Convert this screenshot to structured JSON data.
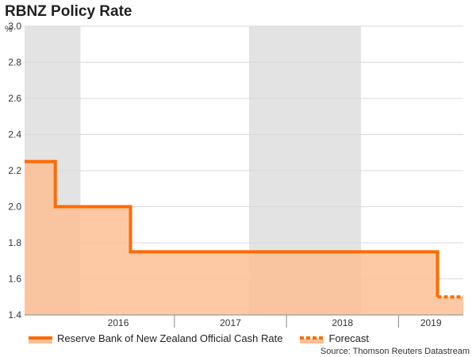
{
  "title": "RBNZ Policy Rate",
  "unit": "%",
  "source": "Source: Thomson Reuters Datastream",
  "colors": {
    "line": "#ff6b00",
    "fill": "#fdbf94",
    "shade": "#e3e3e3",
    "grid": "#d9d9d9"
  },
  "chart_data": {
    "type": "area",
    "title": "RBNZ Policy Rate",
    "ylabel": "%",
    "xlim": [
      "2015-09-01",
      "2019-07-31"
    ],
    "ylim": [
      1.4,
      3.0
    ],
    "yticks": [
      "1.4",
      "1.6",
      "1.8",
      "2.0",
      "2.2",
      "2.4",
      "2.6",
      "2.8",
      "3.0"
    ],
    "grid": true,
    "xticks": [
      {
        "label": "2016",
        "date": "2016-01-01",
        "end": "2017-01-01"
      },
      {
        "label": "2017",
        "date": "2017-01-01",
        "end": "2018-01-01"
      },
      {
        "label": "2018",
        "date": "2018-01-01",
        "end": "2019-01-01"
      },
      {
        "label": "2019",
        "date": "2019-01-01",
        "end": "2019-07-31"
      }
    ],
    "shaded_periods": [
      [
        "2015-09-01",
        "2016-03-01"
      ],
      [
        "2017-09-01",
        "2018-09-01"
      ]
    ],
    "series": [
      {
        "name": "Reserve Bank of New Zealand Official Cash Rate",
        "style": "solid",
        "x": [
          "2015-09-01",
          "2015-10-29",
          "2015-12-10",
          "2016-03-10",
          "2016-08-11",
          "2019-05-08"
        ],
        "values": [
          2.25,
          2.25,
          2.0,
          2.0,
          1.75,
          1.5
        ]
      },
      {
        "name": "Forecast",
        "style": "dotted",
        "x": [
          "2019-05-08",
          "2019-07-31"
        ],
        "values": [
          1.5,
          1.5
        ]
      }
    ],
    "legend_position": "bottom-left"
  }
}
